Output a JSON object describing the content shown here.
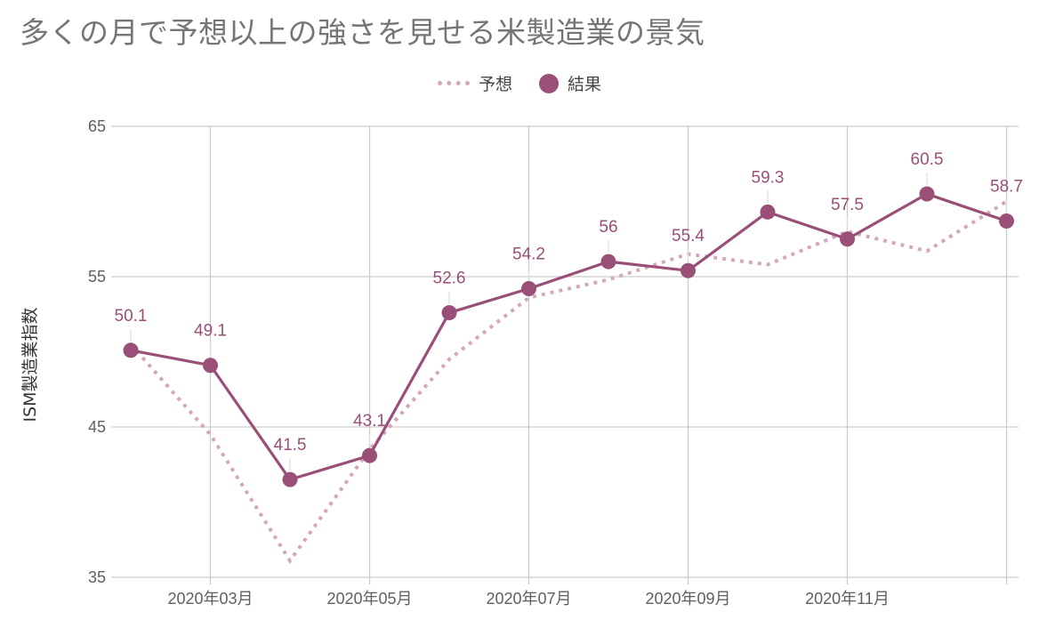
{
  "chart_data": {
    "type": "line",
    "title": "多くの月で予想以上の強さを見せる米製造業の景気",
    "xlabel": "",
    "ylabel": "ISM製造業指数",
    "ylim": [
      35,
      65
    ],
    "yticks": [
      35,
      45,
      55,
      65
    ],
    "x_tick_labels": [
      "2020年03月",
      "2020年05月",
      "2020年07月",
      "2020年09月",
      "2020年11月"
    ],
    "x": [
      "2020-02",
      "2020-03",
      "2020-04",
      "2020-05",
      "2020-06",
      "2020-07",
      "2020-08",
      "2020-09",
      "2020-10",
      "2020-11",
      "2020-12",
      "2021-01"
    ],
    "grid": true,
    "legend_position": "top-center",
    "series": [
      {
        "name": "予想",
        "style": "dotted",
        "color": "#d4a8bc",
        "values": [
          50.5,
          44.5,
          36.1,
          43.5,
          49.5,
          53.6,
          54.8,
          56.5,
          55.8,
          58.0,
          56.7,
          60.0
        ]
      },
      {
        "name": "結果",
        "style": "solid-markers",
        "color": "#9a4f78",
        "values": [
          50.1,
          49.1,
          41.5,
          43.1,
          52.6,
          54.2,
          56.0,
          55.4,
          59.3,
          57.5,
          60.5,
          58.7
        ],
        "data_labels": [
          "50.1",
          "49.1",
          "41.5",
          "43.1",
          "52.6",
          "54.2",
          "56",
          "55.4",
          "59.3",
          "57.5",
          "60.5",
          "58.7"
        ]
      }
    ]
  }
}
